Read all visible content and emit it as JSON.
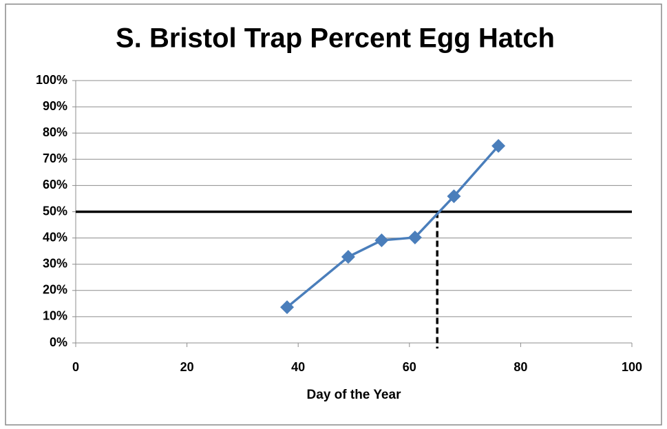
{
  "chart_data": {
    "type": "scatter-line",
    "title": "S. Bristol Trap Percent Egg Hatch",
    "x_label": "Day of the Year",
    "x": [
      38,
      49,
      55,
      61,
      68,
      76
    ],
    "values": [
      13.6,
      32.8,
      39.1,
      40.2,
      55.9,
      75.1
    ],
    "color": "#4a7ebb",
    "xlim": [
      0,
      100
    ],
    "xticks": [
      0,
      20,
      40,
      60,
      80,
      100
    ],
    "ylim": [
      0,
      100
    ],
    "yticks": [
      {
        "value": 0,
        "label": "0%"
      },
      {
        "value": 10,
        "label": "10%"
      },
      {
        "value": 20,
        "label": "20%"
      },
      {
        "value": 30,
        "label": "30%"
      },
      {
        "value": 40,
        "label": "40%"
      },
      {
        "value": 50,
        "label": "50%"
      },
      {
        "value": 60,
        "label": "60%"
      },
      {
        "value": 70,
        "label": "70%"
      },
      {
        "value": 80,
        "label": "80%"
      },
      {
        "value": 90,
        "label": "90%"
      },
      {
        "value": 100,
        "label": "100%"
      }
    ],
    "grid": true,
    "hline": 50,
    "vline": 65
  }
}
